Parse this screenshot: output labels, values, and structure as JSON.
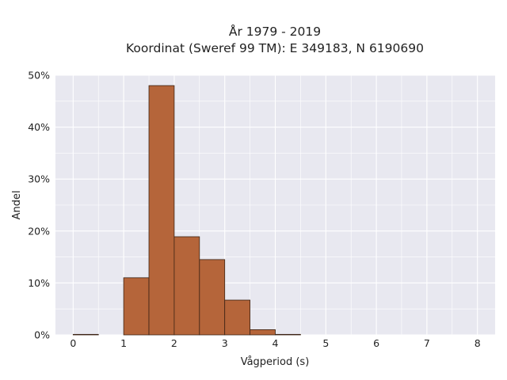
{
  "chart_data": {
    "type": "bar",
    "title": "År 1979 - 2019",
    "subtitle": "Koordinat (Sweref 99 TM): E 349183, N 6190690",
    "xlabel": "Vågperiod (s)",
    "ylabel": "Andel",
    "xlim": [
      -0.35,
      8.35
    ],
    "ylim": [
      0,
      50
    ],
    "x_ticks": [
      0,
      1,
      2,
      3,
      4,
      5,
      6,
      7,
      8
    ],
    "y_ticks": [
      0,
      10,
      20,
      30,
      40,
      50
    ],
    "y_tick_labels": [
      "0%",
      "10%",
      "20%",
      "30%",
      "40%",
      "50%"
    ],
    "bin_width": 0.5,
    "bins": [
      {
        "start": 0.0,
        "end": 0.5,
        "value": 0.1
      },
      {
        "start": 1.0,
        "end": 1.5,
        "value": 11.0
      },
      {
        "start": 1.5,
        "end": 2.0,
        "value": 48.0
      },
      {
        "start": 2.0,
        "end": 2.5,
        "value": 18.9
      },
      {
        "start": 2.5,
        "end": 3.0,
        "value": 14.5
      },
      {
        "start": 3.0,
        "end": 3.5,
        "value": 6.7
      },
      {
        "start": 3.5,
        "end": 4.0,
        "value": 1.0
      },
      {
        "start": 4.0,
        "end": 4.5,
        "value": 0.1
      }
    ],
    "grid": true,
    "colors": {
      "bar_fill": "#b5653a",
      "bar_stroke": "#3b2314",
      "plot_background": "#e8e8f0",
      "grid": "#ffffff"
    }
  }
}
